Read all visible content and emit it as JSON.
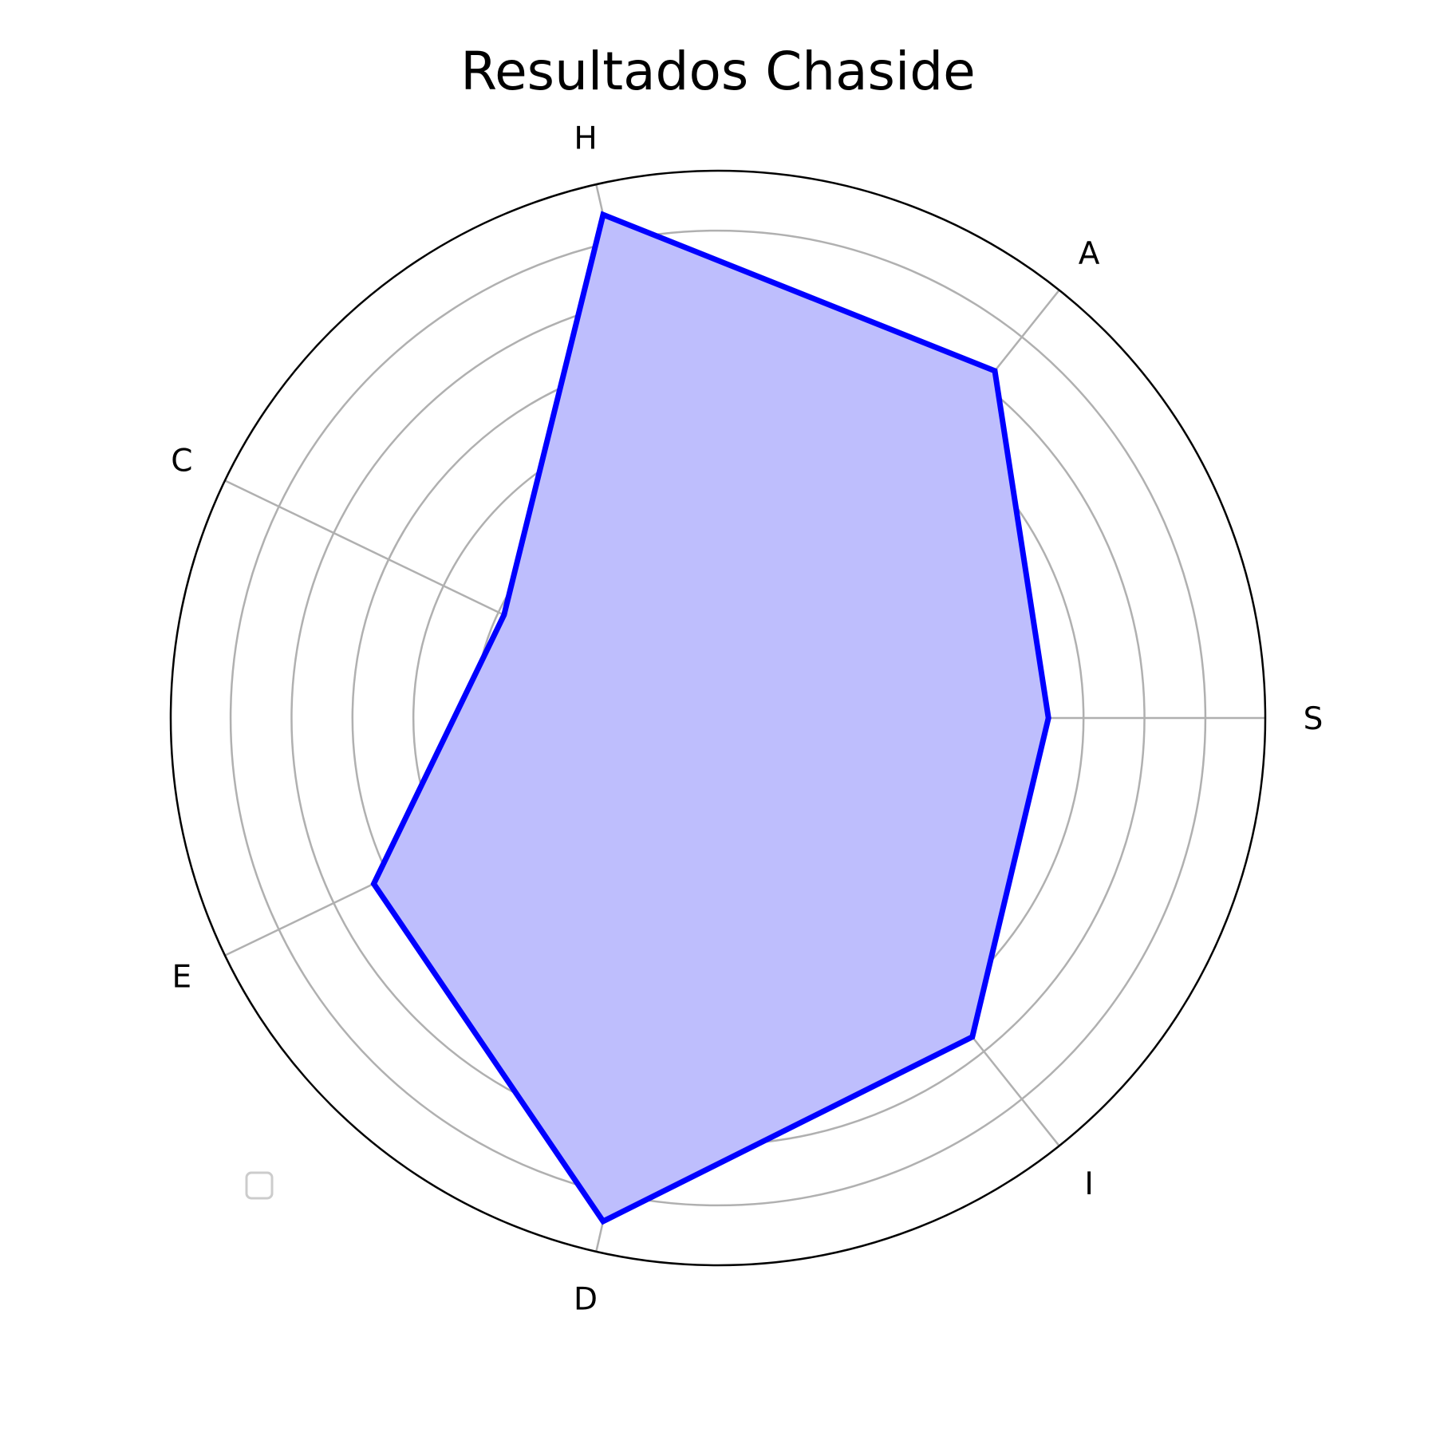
{
  "chart_data": {
    "type": "radar",
    "title": "Resultados Chaside",
    "categories": [
      "S",
      "A",
      "H",
      "C",
      "E",
      "D",
      "I"
    ],
    "series": [
      {
        "values": [
          6.4,
          8.6,
          10.0,
          4.6,
          7.4,
          10.0,
          7.9
        ]
      }
    ],
    "rlim": [
      0,
      10.6
    ],
    "rgrid": [
      1.18,
      2.36,
      3.54,
      4.72,
      5.9,
      7.08,
      8.26,
      9.44,
      10.6
    ],
    "grid": true,
    "legend": "lower-left, empty",
    "colors": {
      "line": "#0000ff",
      "fill": "#bebefd",
      "grid": "#b0b0b0",
      "frame": "#000000",
      "legend_border": "#cccccc"
    }
  }
}
